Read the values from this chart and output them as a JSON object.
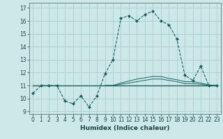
{
  "title": "",
  "xlabel": "Humidex (Indice chaleur)",
  "bg_color": "#cce8e8",
  "grid_color": "#aacccc",
  "line_color": "#1a6060",
  "xlim": [
    -0.5,
    23.5
  ],
  "ylim": [
    8.8,
    17.4
  ],
  "xticks": [
    0,
    1,
    2,
    3,
    4,
    5,
    6,
    7,
    8,
    9,
    10,
    11,
    12,
    13,
    14,
    15,
    16,
    17,
    18,
    19,
    20,
    21,
    22,
    23
  ],
  "yticks": [
    9,
    10,
    11,
    12,
    13,
    14,
    15,
    16,
    17
  ],
  "series1_x": [
    0,
    1,
    2,
    3,
    4,
    5,
    6,
    7,
    8,
    9,
    10,
    11,
    12,
    13,
    14,
    15,
    16,
    17,
    18,
    19,
    20,
    21,
    22,
    23
  ],
  "series1_y": [
    10.4,
    11.0,
    11.0,
    11.0,
    9.8,
    9.6,
    10.2,
    9.35,
    10.2,
    11.9,
    13.0,
    16.2,
    16.4,
    16.0,
    16.5,
    16.75,
    16.0,
    15.7,
    14.6,
    11.8,
    11.4,
    12.5,
    11.0,
    11.0
  ],
  "series2_x": [
    0,
    1,
    2,
    3,
    4,
    5,
    6,
    7,
    8,
    9,
    10,
    11,
    12,
    13,
    14,
    15,
    16,
    17,
    18,
    19,
    20,
    21,
    22,
    23
  ],
  "series2_y": [
    11.0,
    11.0,
    11.0,
    11.0,
    11.0,
    11.0,
    11.0,
    11.0,
    11.0,
    11.0,
    11.0,
    11.0,
    11.0,
    11.0,
    11.0,
    11.0,
    11.0,
    11.0,
    11.0,
    11.0,
    11.0,
    11.0,
    11.0,
    11.0
  ],
  "series3_x": [
    9,
    10,
    11,
    12,
    13,
    14,
    15,
    16,
    17,
    18,
    19,
    20,
    21,
    22,
    23
  ],
  "series3_y": [
    11.0,
    11.0,
    11.2,
    11.35,
    11.5,
    11.6,
    11.7,
    11.7,
    11.55,
    11.45,
    11.3,
    11.3,
    11.2,
    11.05,
    11.0
  ],
  "series4_x": [
    9,
    10,
    11,
    12,
    13,
    14,
    15,
    16,
    17,
    18,
    19,
    20,
    21,
    22,
    23
  ],
  "series4_y": [
    11.0,
    11.0,
    11.1,
    11.2,
    11.3,
    11.4,
    11.5,
    11.5,
    11.4,
    11.3,
    11.15,
    11.15,
    11.1,
    11.0,
    11.0
  ]
}
